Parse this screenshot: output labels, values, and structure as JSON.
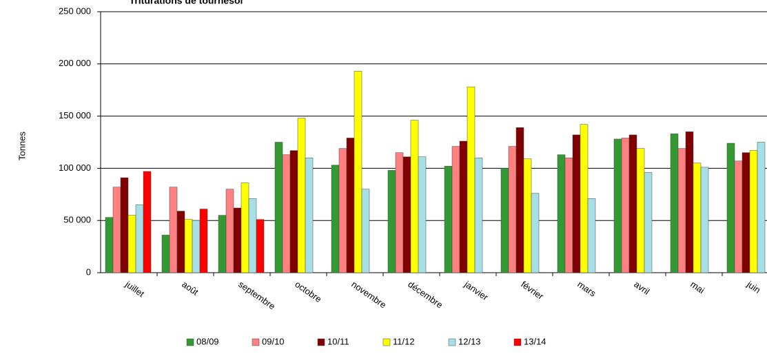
{
  "chart_data": {
    "type": "bar",
    "title": "Triturations de tournesol",
    "y_label": "Tonnes",
    "categories": [
      "juillet",
      "août",
      "septembre",
      "octobre",
      "novembre",
      "décembre",
      "janvier",
      "février",
      "mars",
      "avril",
      "mai",
      "juin"
    ],
    "series": [
      {
        "name": "08/09",
        "color": "#339933",
        "values": [
          53000,
          36000,
          55000,
          125000,
          103000,
          98000,
          102000,
          100000,
          113000,
          128000,
          133000,
          124000
        ]
      },
      {
        "name": "09/10",
        "color": "#ff8080",
        "values": [
          82000,
          82000,
          80000,
          113000,
          119000,
          115000,
          121000,
          121000,
          110000,
          129000,
          119000,
          107000
        ]
      },
      {
        "name": "10/11",
        "color": "#800000",
        "values": [
          91000,
          59000,
          62000,
          117000,
          129000,
          111000,
          126000,
          139000,
          132000,
          132000,
          135000,
          115000
        ]
      },
      {
        "name": "11/12",
        "color": "#ffff00",
        "values": [
          55000,
          51000,
          86000,
          148000,
          193000,
          146000,
          178000,
          109000,
          142000,
          119000,
          105000,
          117000
        ]
      },
      {
        "name": "12/13",
        "color": "#a6e0e6",
        "values": [
          65000,
          50000,
          71000,
          110000,
          80000,
          111000,
          110000,
          76000,
          71000,
          96000,
          101000,
          125000
        ]
      },
      {
        "name": "13/14",
        "color": "#ff0000",
        "values": [
          97000,
          61000,
          51000,
          null,
          null,
          null,
          null,
          null,
          null,
          null,
          null,
          null
        ]
      }
    ],
    "ylim": [
      0,
      250000
    ],
    "yticks": [
      0,
      {
        "value": 50000,
        "label": "50 000"
      },
      {
        "value": 100000,
        "label": "100 000"
      },
      {
        "value": 150000,
        "label": "150 000"
      },
      {
        "value": 200000,
        "label": "200 000"
      },
      {
        "value": 250000,
        "label": "250 000"
      }
    ],
    "grid": true,
    "legend": "bottom"
  }
}
